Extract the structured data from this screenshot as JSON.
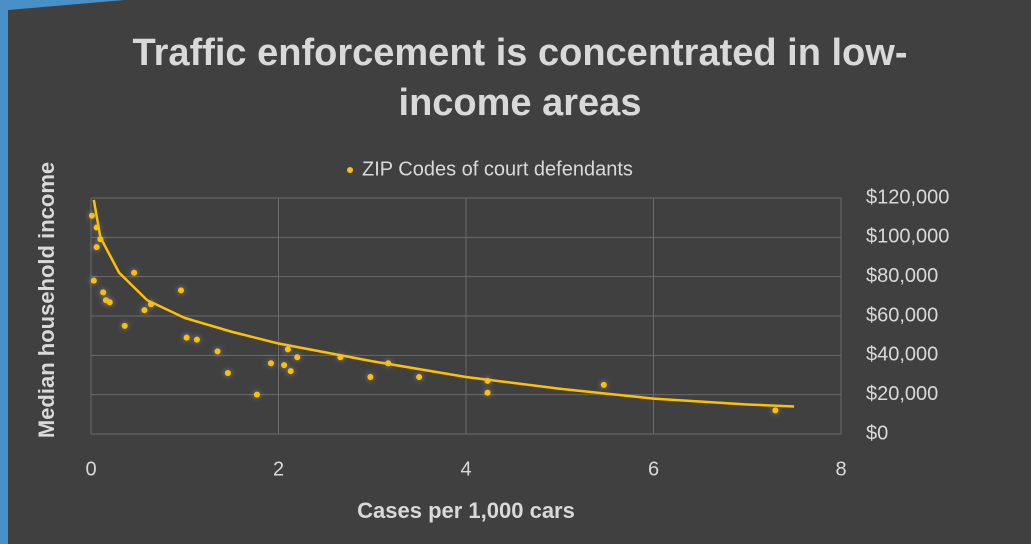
{
  "chart_data": {
    "type": "scatter",
    "title": "Traffic enforcement is concentrated in low-income areas",
    "xlabel": "Cases per 1,000 cars",
    "ylabel": "Median household income",
    "series": [
      {
        "name": "ZIP Codes of court defendants",
        "color": "#ffc000",
        "x": [
          0.01,
          0.06,
          0.1,
          0.06,
          0.03,
          0.13,
          0.16,
          0.2,
          0.36,
          0.46,
          0.57,
          0.64,
          0.96,
          1.02,
          1.13,
          1.35,
          1.46,
          1.77,
          1.92,
          2.06,
          2.1,
          2.13,
          2.2,
          2.66,
          2.98,
          3.17,
          3.5,
          4.23,
          4.23,
          5.47,
          7.3
        ],
        "values": [
          111000,
          105000,
          99000,
          95000,
          78000,
          72000,
          68000,
          67000,
          55000,
          82000,
          63000,
          66000,
          73000,
          49000,
          48000,
          42000,
          31000,
          20000,
          36000,
          35000,
          43000,
          32000,
          39000,
          39000,
          29000,
          36000,
          29000,
          27000,
          21000,
          25000,
          12000
        ]
      }
    ],
    "trendline": {
      "color": "#ffc000",
      "x": [
        0.03,
        0.1,
        0.3,
        0.6,
        1,
        1.5,
        2,
        3,
        4,
        5,
        6,
        7,
        7.5
      ],
      "values": [
        119000,
        100000,
        82000,
        68000,
        59000,
        52000,
        46000,
        37000,
        29000,
        23000,
        18000,
        15000,
        14000
      ]
    },
    "xlim": [
      0,
      8
    ],
    "xticks": [
      0,
      2,
      4,
      6,
      8
    ],
    "ylim": [
      0,
      120000
    ],
    "yticks": [
      {
        "value": 0,
        "label": "$0"
      },
      {
        "value": 20000,
        "label": "$20,000"
      },
      {
        "value": 40000,
        "label": "$40,000"
      },
      {
        "value": 60000,
        "label": "$60,000"
      },
      {
        "value": 80000,
        "label": "$80,000"
      },
      {
        "value": 100000,
        "label": "$100,000"
      },
      {
        "value": 120000,
        "label": "$120,000"
      }
    ],
    "grid": true,
    "legend": "top"
  }
}
